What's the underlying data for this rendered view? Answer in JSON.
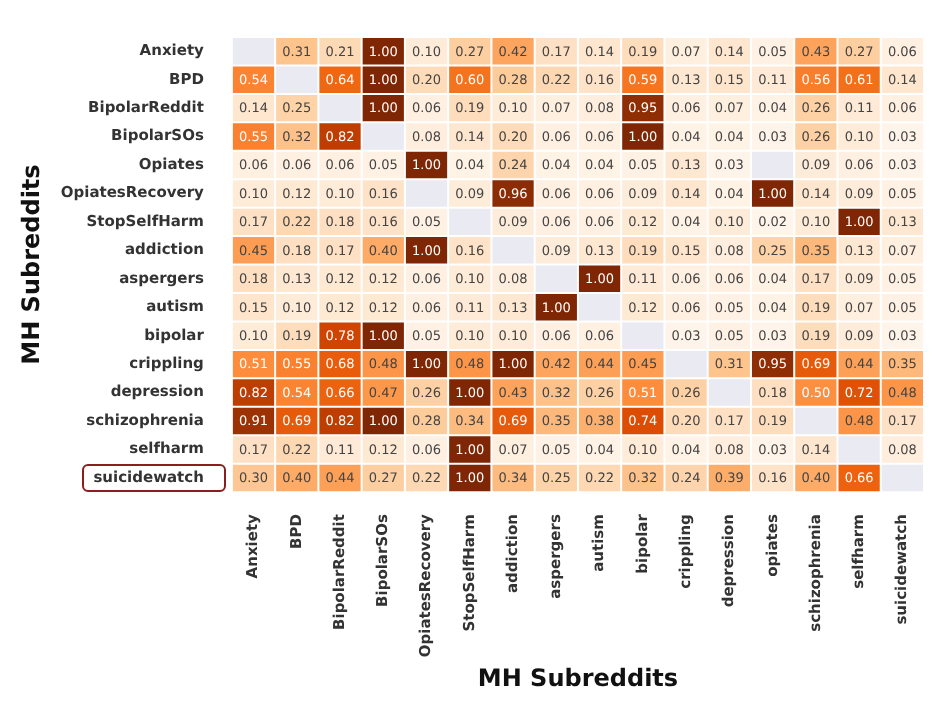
{
  "chart_data": {
    "type": "heatmap",
    "xlabel": "MH Subreddits",
    "ylabel": "MH Subreddits",
    "categories": [
      "Anxiety",
      "BPD",
      "BipolarReddit",
      "BipolarSOs",
      "OpiatesRecovery",
      "StopSelfHarm",
      "addiction",
      "aspergers",
      "autism",
      "bipolar",
      "crippling",
      "depression",
      "opiates",
      "schizophrenia",
      "selfharm",
      "suicidewatch"
    ],
    "y_categories": [
      "Anxiety",
      "BPD",
      "BipolarReddit",
      "BipolarSOs",
      "Opiates",
      "OpiatesRecovery",
      "StopSelfHarm",
      "addiction",
      "aspergers",
      "autism",
      "bipolar",
      "crippling",
      "depression",
      "schizophrenia",
      "selfharm",
      "suicidewatch"
    ],
    "cells": [
      [
        null,
        0.31,
        0.21,
        1.0,
        0.1,
        0.27,
        0.42,
        0.17,
        0.14,
        0.19,
        0.07,
        0.14,
        0.05,
        0.43,
        0.27,
        0.06
      ],
      [
        0.54,
        null,
        0.64,
        1.0,
        0.2,
        0.6,
        0.28,
        0.22,
        0.16,
        0.59,
        0.13,
        0.15,
        0.11,
        0.56,
        0.61,
        0.14
      ],
      [
        0.14,
        0.25,
        null,
        1.0,
        0.06,
        0.19,
        0.1,
        0.07,
        0.08,
        0.95,
        0.06,
        0.07,
        0.04,
        0.26,
        0.11,
        0.06
      ],
      [
        0.55,
        0.32,
        0.82,
        null,
        0.08,
        0.14,
        0.2,
        0.06,
        0.06,
        1.0,
        0.04,
        0.04,
        0.03,
        0.26,
        0.1,
        0.03
      ],
      [
        0.06,
        0.06,
        0.06,
        0.05,
        1.0,
        0.04,
        0.24,
        0.04,
        0.04,
        0.05,
        0.13,
        0.03,
        null,
        0.09,
        0.06,
        0.03
      ],
      [
        0.1,
        0.12,
        0.1,
        0.16,
        null,
        0.09,
        0.96,
        0.06,
        0.06,
        0.09,
        0.14,
        0.04,
        1.0,
        0.14,
        0.09,
        0.05
      ],
      [
        0.17,
        0.22,
        0.18,
        0.16,
        0.05,
        null,
        0.09,
        0.06,
        0.06,
        0.12,
        0.04,
        0.1,
        0.02,
        0.1,
        1.0,
        0.13
      ],
      [
        0.45,
        0.18,
        0.17,
        0.4,
        1.0,
        0.16,
        null,
        0.09,
        0.13,
        0.19,
        0.15,
        0.08,
        0.25,
        0.35,
        0.13,
        0.07
      ],
      [
        0.18,
        0.13,
        0.12,
        0.12,
        0.06,
        0.1,
        0.08,
        null,
        1.0,
        0.11,
        0.06,
        0.06,
        0.04,
        0.17,
        0.09,
        0.05
      ],
      [
        0.15,
        0.1,
        0.12,
        0.12,
        0.06,
        0.11,
        0.13,
        1.0,
        null,
        0.12,
        0.06,
        0.05,
        0.04,
        0.19,
        0.07,
        0.05
      ],
      [
        0.1,
        0.19,
        0.78,
        1.0,
        0.05,
        0.1,
        0.1,
        0.06,
        0.06,
        null,
        0.03,
        0.05,
        0.03,
        0.19,
        0.09,
        0.03
      ],
      [
        0.51,
        0.55,
        0.68,
        0.48,
        1.0,
        0.48,
        1.0,
        0.42,
        0.44,
        0.45,
        null,
        0.31,
        0.95,
        0.69,
        0.44,
        0.35
      ],
      [
        0.82,
        0.54,
        0.66,
        0.47,
        0.26,
        1.0,
        0.43,
        0.32,
        0.26,
        0.51,
        0.26,
        null,
        0.18,
        0.5,
        0.72,
        0.48
      ],
      [
        0.91,
        0.69,
        0.82,
        1.0,
        0.28,
        0.34,
        0.69,
        0.35,
        0.38,
        0.74,
        0.2,
        0.17,
        0.19,
        null,
        0.48,
        0.17
      ],
      [
        0.17,
        0.22,
        0.11,
        0.12,
        0.06,
        1.0,
        0.07,
        0.05,
        0.04,
        0.1,
        0.04,
        0.08,
        0.03,
        0.14,
        null,
        0.08
      ],
      [
        0.3,
        0.4,
        0.44,
        0.27,
        0.22,
        1.0,
        0.34,
        0.25,
        0.22,
        0.32,
        0.24,
        0.39,
        0.16,
        0.4,
        0.66,
        null
      ]
    ],
    "cell_labels": [
      [
        null,
        "0.31",
        "0.21",
        "1.00",
        "0.10",
        "0.27",
        "0.42",
        "0.17",
        "0.14",
        "0.19",
        "0.07",
        "0.14",
        "0.05",
        "0.43",
        "0.27",
        "0.06"
      ],
      [
        "0.54",
        null,
        "0.64",
        "1.00",
        "0.20",
        "0.60",
        "0.28",
        "0.22",
        "0.16",
        "0.59",
        "0.13",
        "0.15",
        "0.11",
        "0.56",
        "0.61",
        "0.14"
      ],
      [
        "0.14",
        "0.25",
        null,
        "1.00",
        "0.06",
        "0.19",
        "0.10",
        "0.07",
        "0.08",
        "0.95",
        "0.06",
        "0.07",
        "0.04",
        "0.26",
        "0.11",
        "0.06"
      ],
      [
        "0.55",
        "0.32",
        "0.82",
        null,
        "0.08",
        "0.14",
        "0.20",
        "0.06",
        "0.06",
        "1.00",
        "0.04",
        "0.04",
        "0.03",
        "0.26",
        "0.10",
        "0.03"
      ],
      [
        "0.06",
        "0.06",
        "0.06",
        "0.05",
        "1.00",
        "0.04",
        "0.24",
        "0.04",
        "0.04",
        "0.05",
        "0.13",
        "0.03",
        null,
        "0.09",
        "0.06",
        "0.03"
      ],
      [
        "0.10",
        "0.12",
        "0.10",
        "0.16",
        null,
        "0.09",
        "0.96",
        "0.06",
        "0.06",
        "0.09",
        "0.14",
        "0.04",
        "1.00",
        "0.14",
        "0.09",
        "0.05"
      ],
      [
        "0.17",
        "0.22",
        "0.18",
        "0.16",
        "0.05",
        null,
        "0.09",
        "0.06",
        "0.06",
        "0.12",
        "0.04",
        "0.10",
        "0.02",
        "0.10",
        "1.00",
        "0.13"
      ],
      [
        "0.45",
        "0.18",
        "0.17",
        "0.40",
        "1.00",
        "0.16",
        null,
        "0.09",
        "0.13",
        "0.19",
        "0.15",
        "0.08",
        "0.25",
        "0.35",
        "0.13",
        "0.07"
      ],
      [
        "0.18",
        "0.13",
        "0.12",
        "0.12",
        "0.06",
        "0.10",
        "0.08",
        null,
        "1.00",
        "0.11",
        "0.06",
        "0.06",
        "0.04",
        "0.17",
        "0.09",
        "0.05"
      ],
      [
        "0.15",
        "0.10",
        "0.12",
        "0.12",
        "0.06",
        "0.11",
        "0.13",
        "1.00",
        null,
        "0.12",
        "0.06",
        "0.05",
        "0.04",
        "0.19",
        "0.07",
        "0.05"
      ],
      [
        "0.10",
        "0.19",
        "0.78",
        "1.00",
        "0.05",
        "0.10",
        "0.10",
        "0.06",
        "0.06",
        null,
        "0.03",
        "0.05",
        "0.03",
        "0.19",
        "0.09",
        "0.03"
      ],
      [
        "0.51",
        "0.55",
        "0.68",
        "0.48",
        "1.00",
        "0.48",
        "1.00",
        "0.42",
        "0.44",
        "0.45",
        null,
        "0.31",
        "0.95",
        "0.69",
        "0.44",
        "0.35"
      ],
      [
        "0.82",
        "0.54",
        "0.66",
        "0.47",
        "0.26",
        "1.00",
        "0.43",
        "0.32",
        "0.26",
        "0.51",
        "0.26",
        null,
        "0.18",
        "0.50",
        "0.72",
        "0.48"
      ],
      [
        "0.91",
        "0.69",
        "0.82",
        "1.00",
        "0.28",
        "0.34",
        "0.69",
        "0.35",
        "0.38",
        "0.74",
        "0.20",
        "0.17",
        "0.19",
        null,
        "0.48",
        "0.17"
      ],
      [
        "0.17",
        "0.22",
        "0.11",
        "0.12",
        "0.06",
        "1.00",
        "0.07",
        "0.05",
        "0.04",
        "0.10",
        "0.04",
        "0.08",
        "0.03",
        "0.14",
        null,
        "0.08"
      ],
      [
        "0.30",
        "0.40",
        "0.44",
        "0.27",
        "0.22",
        "1.00",
        "0.34",
        "0.25",
        "0.22",
        "0.32",
        "0.24",
        "0.39",
        "0.16",
        "0.40",
        "0.66",
        null
      ]
    ]
  }
}
